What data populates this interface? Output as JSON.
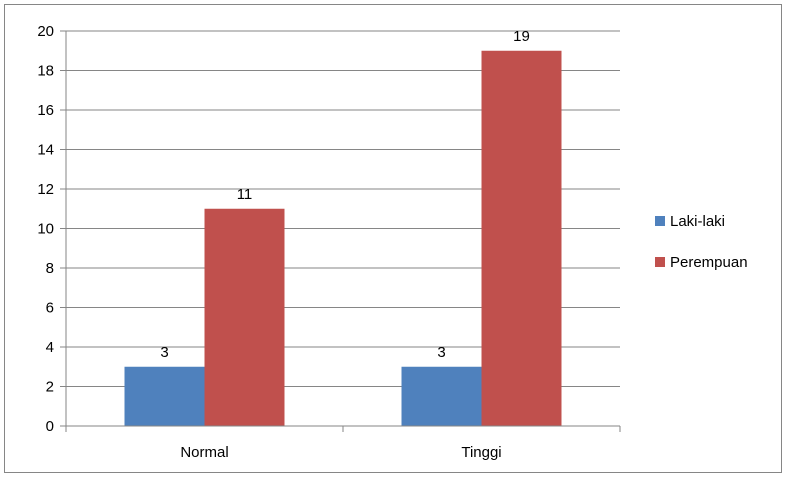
{
  "chart_data": {
    "type": "bar",
    "categories": [
      "Normal",
      "Tinggi"
    ],
    "series": [
      {
        "name": "Laki-laki",
        "values": [
          3,
          3
        ],
        "color": "#4f81bd"
      },
      {
        "name": "Perempuan",
        "values": [
          11,
          19
        ],
        "color": "#c0504d"
      }
    ],
    "yticks": [
      "0",
      "2",
      "4",
      "6",
      "8",
      "10",
      "12",
      "14",
      "16",
      "18",
      "20"
    ],
    "ylim": [
      0,
      20
    ],
    "grid": true,
    "data_labels": true,
    "legend_position": "right",
    "colors": {
      "gridline": "#868686",
      "axis": "#868686",
      "frame": "#868686"
    }
  }
}
